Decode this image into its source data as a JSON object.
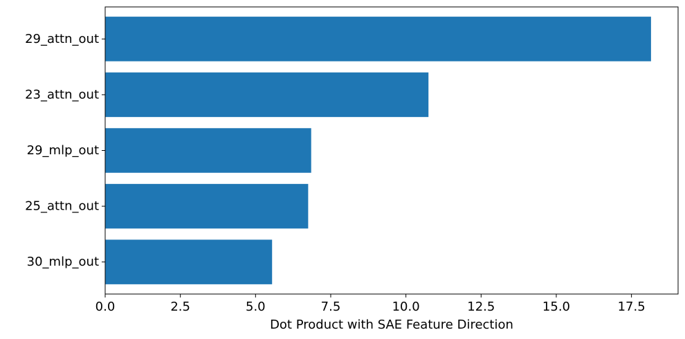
{
  "chart_data": {
    "type": "bar",
    "orientation": "horizontal",
    "categories": [
      "29_attn_out",
      "23_attn_out",
      "29_mlp_out",
      "25_attn_out",
      "30_mlp_out"
    ],
    "values": [
      18.15,
      10.75,
      6.85,
      6.75,
      5.55
    ],
    "xlabel": "Dot Product with SAE Feature Direction",
    "ylabel": "",
    "title": "",
    "xlim": [
      0,
      19.05
    ],
    "xticks": [
      "0.0",
      "2.5",
      "5.0",
      "7.5",
      "10.0",
      "12.5",
      "15.0",
      "17.5"
    ],
    "xtick_values": [
      0,
      2.5,
      5,
      7.5,
      10,
      12.5,
      15,
      17.5
    ],
    "bar_color": "#1f77b4",
    "grid": false,
    "legend": "none"
  }
}
